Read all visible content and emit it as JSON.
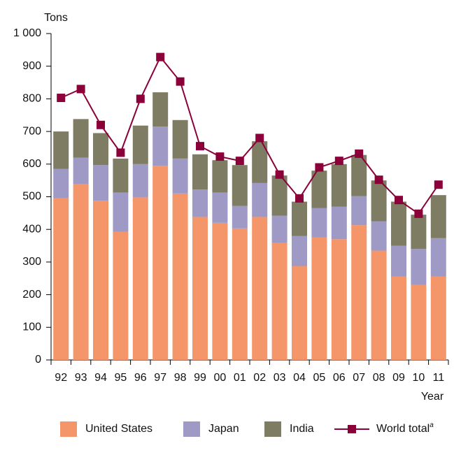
{
  "chart_data": {
    "type": "stacked_bar_line",
    "y_label": "Tons",
    "x_label": "Year",
    "categories": [
      "92",
      "93",
      "94",
      "95",
      "96",
      "97",
      "98",
      "99",
      "00",
      "01",
      "02",
      "03",
      "04",
      "05",
      "06",
      "07",
      "08",
      "09",
      "10",
      "11"
    ],
    "series": [
      {
        "name": "United States",
        "color": "#f4956a",
        "kind": "bar",
        "values": [
          495,
          538,
          488,
          393,
          498,
          595,
          510,
          438,
          420,
          403,
          438,
          358,
          288,
          375,
          370,
          413,
          335,
          255,
          230,
          255
        ]
      },
      {
        "name": "Japan",
        "color": "#9f99c6",
        "kind": "bar",
        "values": [
          90,
          82,
          109,
          120,
          102,
          120,
          107,
          84,
          93,
          69,
          104,
          84,
          92,
          90,
          100,
          89,
          90,
          95,
          110,
          118
        ]
      },
      {
        "name": "India",
        "color": "#7f7c64",
        "kind": "bar",
        "values": [
          115,
          118,
          98,
          104,
          118,
          105,
          118,
          108,
          99,
          125,
          128,
          123,
          105,
          115,
          130,
          126,
          125,
          135,
          105,
          132
        ]
      },
      {
        "name": "World total",
        "color": "#8b0039",
        "kind": "line",
        "values": [
          803,
          830,
          720,
          635,
          800,
          928,
          853,
          655,
          623,
          610,
          680,
          568,
          495,
          590,
          610,
          632,
          552,
          490,
          448,
          537
        ]
      }
    ],
    "legend_footnote_marker": "a",
    "ylim": [
      0,
      1000
    ],
    "yticks": [
      0,
      100,
      200,
      300,
      400,
      500,
      600,
      700,
      800,
      900,
      {
        "value": 1000,
        "label": "1 000"
      }
    ]
  }
}
